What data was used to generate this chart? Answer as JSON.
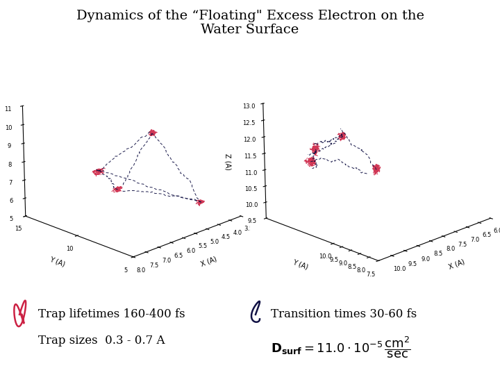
{
  "title_line1": "Dynamics of the “Floating\" Excess Electron on the",
  "title_line2": "Water Surface",
  "title_fontsize": 14,
  "bg_color": "#ffffff",
  "trap_color": "#cc2244",
  "transition_color": "#111144",
  "text_fontsize": 12,
  "annotation_trap": "Trap lifetimes 160-400 fs",
  "annotation_trap_size": "Trap sizes  0.3 - 0.7 A",
  "annotation_transition": "Transition times 30-60 fs"
}
